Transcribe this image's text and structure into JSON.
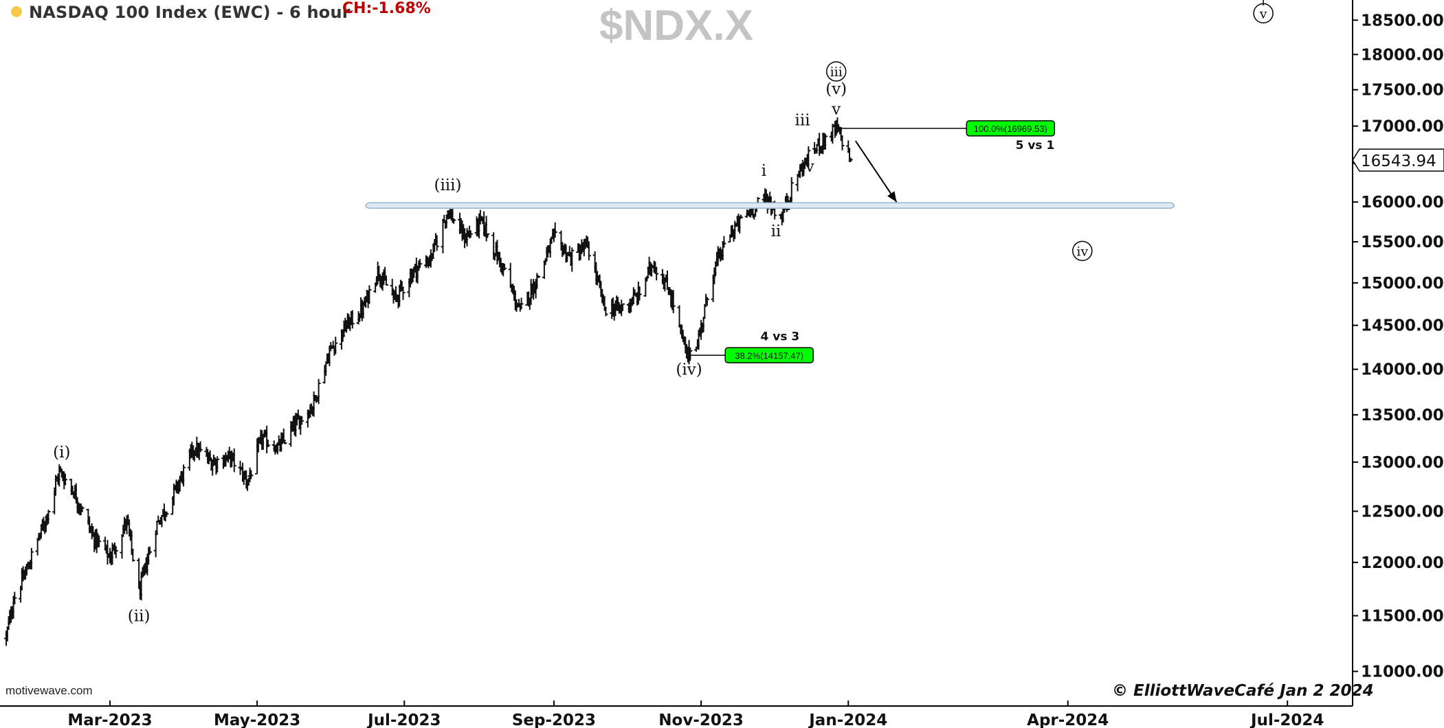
{
  "header": {
    "title": "NASDAQ 100 Index (EWC) - 6 hour",
    "change": "CH:-1.68%",
    "symbol": "$NDX.X"
  },
  "footer": {
    "source": "motivewave.com",
    "credit": "© ElliottWaveCafé Jan 2 2024"
  },
  "colors": {
    "price_bars": "#111111",
    "fib_box": "#00ff00",
    "zone_fill": "#dde9f3",
    "zone_edge": "#9ab4cb",
    "header_dot": "#f7c948",
    "change_text": "#c00000"
  },
  "chart_data": {
    "type": "bar",
    "subtype": "ohlc",
    "x_axis": {
      "range": [
        "2023-01-15",
        "2024-07-28"
      ],
      "ticks": [
        {
          "date": "2023-03-01",
          "label": "Mar-2023"
        },
        {
          "date": "2023-05-01",
          "label": "May-2023"
        },
        {
          "date": "2023-07-01",
          "label": "Jul-2023"
        },
        {
          "date": "2023-09-01",
          "label": "Sep-2023"
        },
        {
          "date": "2023-11-01",
          "label": "Nov-2023"
        },
        {
          "date": "2024-01-01",
          "label": "Jan-2024"
        },
        {
          "date": "2024-04-01",
          "label": "Apr-2024"
        },
        {
          "date": "2024-07-01",
          "label": "Jul-2024"
        }
      ]
    },
    "y_axis": {
      "range": [
        10700,
        18800
      ],
      "ticks": [
        "11000.00",
        "11500.00",
        "12000.00",
        "12500.00",
        "13000.00",
        "13500.00",
        "14000.00",
        "14500.00",
        "15000.00",
        "15500.00",
        "16000.00",
        "16500.00",
        "17000.00",
        "17500.00",
        "18000.00",
        "18500.00"
      ]
    },
    "last_price": "16543.94",
    "price_path": [
      [
        "2023-01-17",
        11300
      ],
      [
        "2023-01-20",
        11650
      ],
      [
        "2023-01-25",
        11900
      ],
      [
        "2023-02-02",
        12400
      ],
      [
        "2023-02-08",
        12900
      ],
      [
        "2023-02-14",
        12700
      ],
      [
        "2023-02-22",
        12250
      ],
      [
        "2023-03-01",
        12050
      ],
      [
        "2023-03-08",
        12400
      ],
      [
        "2023-03-13",
        11700
      ],
      [
        "2023-03-20",
        12350
      ],
      [
        "2023-03-28",
        12700
      ],
      [
        "2023-04-05",
        13150
      ],
      [
        "2023-04-12",
        13000
      ],
      [
        "2023-04-20",
        13050
      ],
      [
        "2023-04-27",
        12800
      ],
      [
        "2023-05-03",
        13250
      ],
      [
        "2023-05-10",
        13150
      ],
      [
        "2023-05-17",
        13400
      ],
      [
        "2023-05-24",
        13600
      ],
      [
        "2023-05-31",
        14200
      ],
      [
        "2023-06-07",
        14500
      ],
      [
        "2023-06-14",
        14700
      ],
      [
        "2023-06-20",
        15150
      ],
      [
        "2023-06-27",
        14800
      ],
      [
        "2023-07-05",
        15150
      ],
      [
        "2023-07-12",
        15300
      ],
      [
        "2023-07-19",
        15900
      ],
      [
        "2023-07-26",
        15550
      ],
      [
        "2023-08-02",
        15750
      ],
      [
        "2023-08-09",
        15300
      ],
      [
        "2023-08-18",
        14650
      ],
      [
        "2023-08-25",
        15050
      ],
      [
        "2023-09-01",
        15550
      ],
      [
        "2023-09-08",
        15300
      ],
      [
        "2023-09-15",
        15450
      ],
      [
        "2023-09-22",
        14700
      ],
      [
        "2023-09-29",
        14700
      ],
      [
        "2023-10-06",
        14850
      ],
      [
        "2023-10-12",
        15250
      ],
      [
        "2023-10-19",
        14900
      ],
      [
        "2023-10-26",
        14150
      ],
      [
        "2023-10-31",
        14350
      ],
      [
        "2023-11-06",
        15150
      ],
      [
        "2023-11-13",
        15600
      ],
      [
        "2023-11-20",
        15850
      ],
      [
        "2023-11-28",
        16050
      ],
      [
        "2023-12-04",
        15800
      ],
      [
        "2023-12-11",
        16350
      ],
      [
        "2023-12-18",
        16700
      ],
      [
        "2023-12-27",
        16960
      ],
      [
        "2023-12-29",
        16850
      ],
      [
        "2024-01-02",
        16544
      ]
    ],
    "resistance_zone": {
      "start": "2023-06-15",
      "end": "2024-05-15",
      "low": 15920,
      "high": 15990
    },
    "fib_levels": [
      {
        "label": "100.0%(16969.53)",
        "price": 16969.53,
        "from": "2023-12-28",
        "to": "2024-02-19",
        "note": "5 vs 1"
      },
      {
        "label": "38.2%(14157.47)",
        "price": 14157.47,
        "from": "2023-10-27",
        "to": "2023-11-11",
        "note": "4 vs 3"
      }
    ],
    "wave_labels": [
      {
        "text": "(i)",
        "date": "2023-02-09",
        "price": 13050,
        "circled": false
      },
      {
        "text": "(ii)",
        "date": "2023-03-13",
        "price": 11450,
        "circled": false
      },
      {
        "text": "(iii)",
        "date": "2023-07-19",
        "price": 16150,
        "circled": false
      },
      {
        "text": "(iv)",
        "date": "2023-10-27",
        "price": 13940,
        "circled": false
      },
      {
        "text": "i",
        "date": "2023-11-27",
        "price": 16340,
        "circled": false
      },
      {
        "text": "ii",
        "date": "2023-12-02",
        "price": 15570,
        "circled": false
      },
      {
        "text": "iii",
        "date": "2023-12-13",
        "price": 17010,
        "circled": false
      },
      {
        "text": "iv",
        "date": "2023-12-15",
        "price": 16390,
        "circled": false
      },
      {
        "text": "v",
        "date": "2023-12-27",
        "price": 17160,
        "circled": false
      },
      {
        "text": "(v)",
        "date": "2023-12-27",
        "price": 17440,
        "circled": false
      },
      {
        "text": "iii",
        "date": "2023-12-27",
        "price": 17680,
        "circled": true
      },
      {
        "text": "iv",
        "date": "2024-04-07",
        "price": 15320,
        "circled": true
      },
      {
        "text": "v",
        "date": "2024-06-21",
        "price": 18520,
        "circled": true
      }
    ],
    "arrows": [
      {
        "from": [
          "2024-01-04",
          16800
        ],
        "to": [
          "2024-01-21",
          16000
        ]
      }
    ]
  }
}
